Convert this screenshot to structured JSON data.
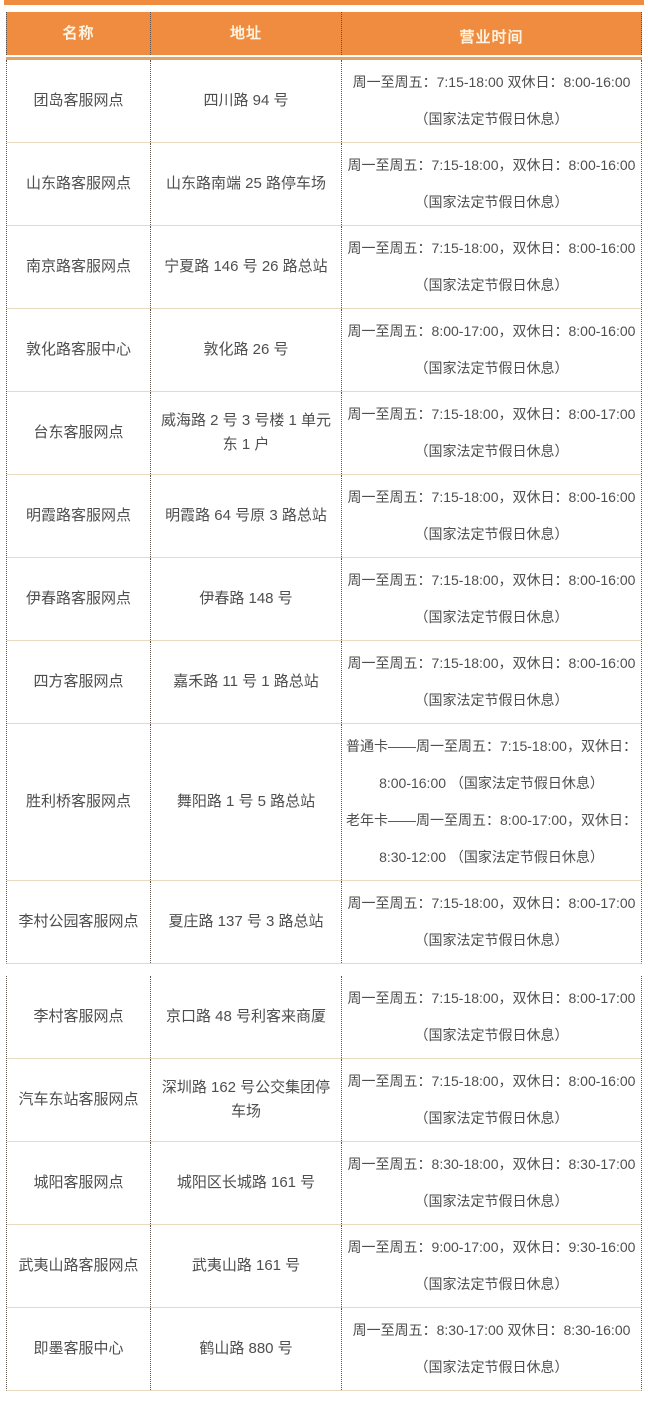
{
  "colors": {
    "header_bg": "#F08C3F",
    "header_text": "#FCF3E2",
    "header_underline": "#E0A467",
    "body_text": "#4E4E4E",
    "dotted_border": "#5E5149",
    "row_line": "#E8DAC0"
  },
  "table": {
    "headers": [
      {
        "label": "名称"
      },
      {
        "label": "地址"
      },
      {
        "label": "营业时间"
      }
    ],
    "sections": [
      {
        "rows": [
          {
            "name": "团岛客服网点",
            "address": "四川路 94 号",
            "hours": [
              "周一至周五：7:15-18:00 双休日：8:00-16:00",
              "（国家法定节假日休息）"
            ]
          },
          {
            "name": "山东路客服网点",
            "address": "山东路南端 25 路停车场",
            "hours": [
              "周一至周五：7:15-18:00，双休日：8:00-16:00",
              "（国家法定节假日休息）"
            ]
          },
          {
            "name": "南京路客服网点",
            "address": "宁夏路 146 号 26 路总站",
            "hours": [
              "周一至周五：7:15-18:00，双休日：8:00-16:00",
              "（国家法定节假日休息）"
            ]
          },
          {
            "name": "敦化路客服中心",
            "address": "敦化路 26 号",
            "hours": [
              "周一至周五：8:00-17:00，双休日：8:00-16:00",
              "（国家法定节假日休息）"
            ]
          },
          {
            "name": "台东客服网点",
            "address": "威海路 2 号 3 号楼 1 单元东 1 户",
            "hours": [
              "周一至周五：7:15-18:00，双休日：8:00-17:00",
              "（国家法定节假日休息）"
            ]
          },
          {
            "name": "明霞路客服网点",
            "address": "明霞路 64 号原 3 路总站",
            "hours": [
              "周一至周五：7:15-18:00，双休日：8:00-16:00",
              "（国家法定节假日休息）"
            ]
          },
          {
            "name": "伊春路客服网点",
            "address": "伊春路 148 号",
            "hours": [
              "周一至周五：7:15-18:00，双休日：8:00-16:00",
              "（国家法定节假日休息）"
            ]
          },
          {
            "name": "四方客服网点",
            "address": "嘉禾路 11 号 1 路总站",
            "hours": [
              "周一至周五：7:15-18:00，双休日：8:00-16:00",
              "（国家法定节假日休息）"
            ]
          },
          {
            "name": "胜利桥客服网点",
            "address": "舞阳路 1 号 5 路总站",
            "hours": [
              "普通卡——周一至周五：7:15-18:00，双休日：",
              "8:00-16:00 （国家法定节假日休息）",
              "老年卡——周一至周五：8:00-17:00，双休日：",
              "8:30-12:00 （国家法定节假日休息）"
            ]
          },
          {
            "name": "李村公园客服网点",
            "address": "夏庄路 137 号 3 路总站",
            "hours": [
              "周一至周五：7:15-18:00，双休日：8:00-17:00",
              "（国家法定节假日休息）"
            ]
          }
        ]
      },
      {
        "rows": [
          {
            "name": "李村客服网点",
            "address": "京口路 48 号利客来商厦",
            "hours": [
              "周一至周五：7:15-18:00，双休日：8:00-17:00",
              "（国家法定节假日休息）"
            ]
          },
          {
            "name": "汽车东站客服网点",
            "address": "深圳路 162 号公交集团停车场",
            "hours": [
              "周一至周五：7:15-18:00，双休日：8:00-16:00",
              "（国家法定节假日休息）"
            ]
          },
          {
            "name": "城阳客服网点",
            "address": "城阳区长城路 161 号",
            "hours": [
              "周一至周五：8:30-18:00，双休日：8:30-17:00",
              "（国家法定节假日休息）"
            ]
          },
          {
            "name": "武夷山路客服网点",
            "address": "武夷山路 161 号",
            "hours": [
              "周一至周五：9:00-17:00，双休日：9:30-16:00",
              "（国家法定节假日休息）"
            ]
          },
          {
            "name": "即墨客服中心",
            "address": "鹤山路 880 号",
            "hours": [
              "周一至周五：8:30-17:00 双休日：8:30-16:00",
              "（国家法定节假日休息）"
            ]
          }
        ]
      }
    ]
  }
}
